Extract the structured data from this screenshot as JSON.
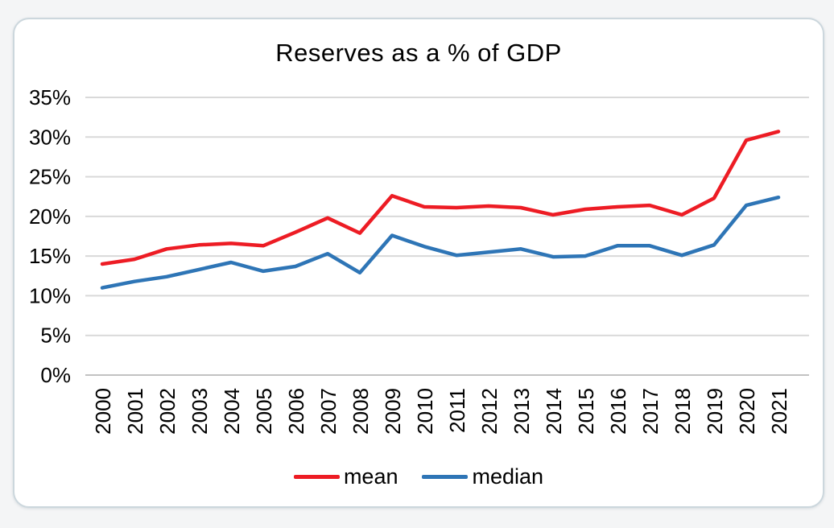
{
  "chart_data": {
    "type": "line",
    "title": "Reserves as a % of GDP",
    "xlabel": "",
    "ylabel": "",
    "categories": [
      "2000",
      "2001",
      "2002",
      "2003",
      "2004",
      "2005",
      "2006",
      "2007",
      "2008",
      "2009",
      "2010",
      "2011",
      "2012",
      "2013",
      "2014",
      "2015",
      "2016",
      "2017",
      "2018",
      "2019",
      "2020",
      "2021"
    ],
    "series": [
      {
        "name": "mean",
        "color": "#ed1c24",
        "values": [
          14.0,
          14.6,
          15.9,
          16.4,
          16.6,
          16.3,
          18.0,
          19.8,
          17.9,
          22.6,
          21.2,
          21.1,
          21.3,
          21.1,
          20.2,
          20.9,
          21.2,
          21.4,
          20.2,
          22.3,
          29.6,
          30.7
        ]
      },
      {
        "name": "median",
        "color": "#2e75b6",
        "values": [
          11.0,
          11.8,
          12.4,
          13.3,
          14.2,
          13.1,
          13.7,
          15.3,
          12.9,
          17.6,
          16.2,
          15.1,
          15.5,
          15.9,
          14.9,
          15.0,
          16.3,
          16.3,
          15.1,
          16.4,
          21.4,
          22.4
        ]
      }
    ],
    "ylim": [
      0,
      35
    ],
    "yticks": [
      {
        "value": 35,
        "label": "35%"
      },
      {
        "value": 30,
        "label": "30%"
      },
      {
        "value": 25,
        "label": "25%"
      },
      {
        "value": 20,
        "label": "20%"
      },
      {
        "value": 15,
        "label": "15%"
      },
      {
        "value": 10,
        "label": "10%"
      },
      {
        "value": 5,
        "label": "5%"
      },
      {
        "value": 0,
        "label": "0%"
      }
    ],
    "grid": true,
    "legend_position": "bottom",
    "gridline_color": "#d9d9d9",
    "axisline_color": "#c2c2c2"
  }
}
